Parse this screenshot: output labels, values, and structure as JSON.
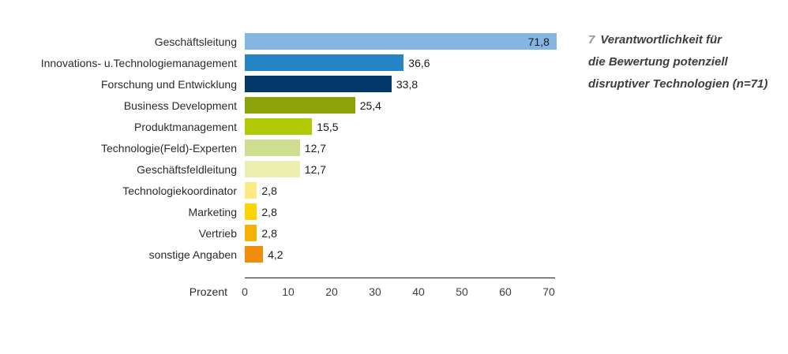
{
  "chart_data": {
    "type": "bar",
    "orientation": "horizontal",
    "title": "",
    "xlabel": "Prozent",
    "xlim": [
      0,
      70
    ],
    "xticks": [
      "0",
      "10",
      "20",
      "30",
      "40",
      "50",
      "60",
      "70"
    ],
    "grid": false,
    "legend": false,
    "decimal_separator": ",",
    "bars": [
      {
        "category": "Geschäftsleitung",
        "value": 71.8,
        "display": "71,8",
        "color": "#85b6e2",
        "value_inside": true
      },
      {
        "category": "Innovations- u.Technologiemanagement",
        "value": 36.6,
        "display": "36,6",
        "color": "#2584c5",
        "value_inside": false
      },
      {
        "category": "Forschung und Entwicklung",
        "value": 33.8,
        "display": "33,8",
        "color": "#04376a",
        "value_inside": false
      },
      {
        "category": "Business Development",
        "value": 25.4,
        "display": "25,4",
        "color": "#8ba309",
        "value_inside": false
      },
      {
        "category": "Produktmanagement",
        "value": 15.5,
        "display": "15,5",
        "color": "#b1c905",
        "value_inside": false
      },
      {
        "category": "Technologie(Feld)-Experten",
        "value": 12.7,
        "display": "12,7",
        "color": "#cfdd90",
        "value_inside": false
      },
      {
        "category": "Geschäftsfeldleitung",
        "value": 12.7,
        "display": "12,7",
        "color": "#edefb0",
        "value_inside": false
      },
      {
        "category": "Technologiekoordinator",
        "value": 2.8,
        "display": "2,8",
        "color": "#fce983",
        "value_inside": false
      },
      {
        "category": "Marketing",
        "value": 2.8,
        "display": "2,8",
        "color": "#fcd402",
        "value_inside": false
      },
      {
        "category": "Vertrieb",
        "value": 2.8,
        "display": "2,8",
        "color": "#f7b004",
        "value_inside": false
      },
      {
        "category": "sonstige Angaben",
        "value": 4.2,
        "display": "4,2",
        "color": "#ef8e08",
        "value_inside": false
      }
    ]
  },
  "caption": {
    "number": "7",
    "lines": [
      "Verantwortlichkeit für",
      "die Bewertung potenziell",
      "disruptiver Technologien (n=71)"
    ]
  },
  "style": {
    "axis_color": "#1c1c1c",
    "text_color": "#2b2b2b",
    "caption_number_color": "#90969b",
    "caption_text_color": "#3d3d3d",
    "background": "#ffffff"
  }
}
